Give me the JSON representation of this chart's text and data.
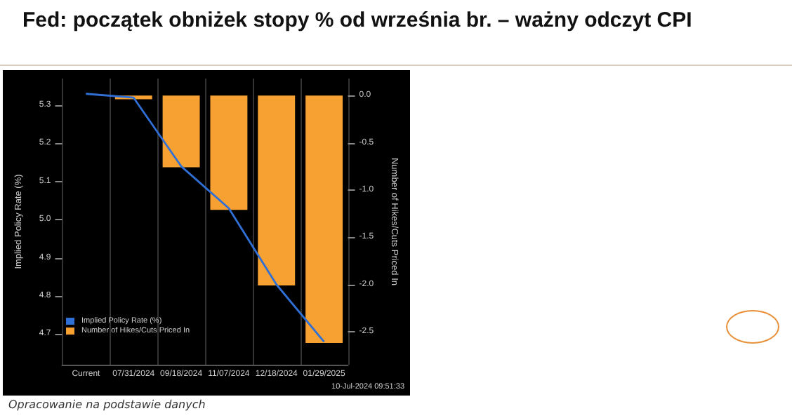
{
  "chart_data": {
    "type": "bar",
    "title": "Fed: początek obniżek stopy % od września br. – ważny odczyt CPI",
    "categories": [
      "Current",
      "07/31/2024",
      "09/18/2024",
      "11/07/2024",
      "12/18/2024",
      "01/29/2025"
    ],
    "series": [
      {
        "name": "Implied Policy Rate (%)",
        "type": "line",
        "color": "#2f6fd6",
        "axis": "y",
        "values": [
          5.33,
          5.32,
          5.14,
          5.03,
          4.83,
          4.68
        ]
      },
      {
        "name": "Number of Hikes/Cuts Priced In",
        "color": "#f7a133",
        "axis": "y2",
        "values": [
          0,
          -0.04,
          -0.76,
          -1.21,
          -2.01,
          -2.62
        ]
      }
    ],
    "ylabel": "Implied Policy Rate (%)",
    "y2label": "Number of Hikes/Cuts Priced In",
    "ylim": [
      4.62,
      5.37
    ],
    "yticks": [
      4.7,
      4.8,
      4.9,
      {
        "value": 5,
        "label": "5.0"
      },
      5.1,
      5.2,
      5.3
    ],
    "y2lim": [
      -2.85,
      0.18
    ],
    "y2ticks": [
      -2.5,
      {
        "value": -2,
        "label": "-2.0"
      },
      -1.5,
      {
        "value": -1,
        "label": "-1.0"
      },
      -0.5,
      {
        "value": 0,
        "label": "0.0"
      }
    ],
    "grid": "x",
    "legend": "bottom left",
    "marker": "none",
    "annotations": [
      "10-Jul-2024 09:51:33",
      "Opracowanie na podstawie danych"
    ]
  }
}
